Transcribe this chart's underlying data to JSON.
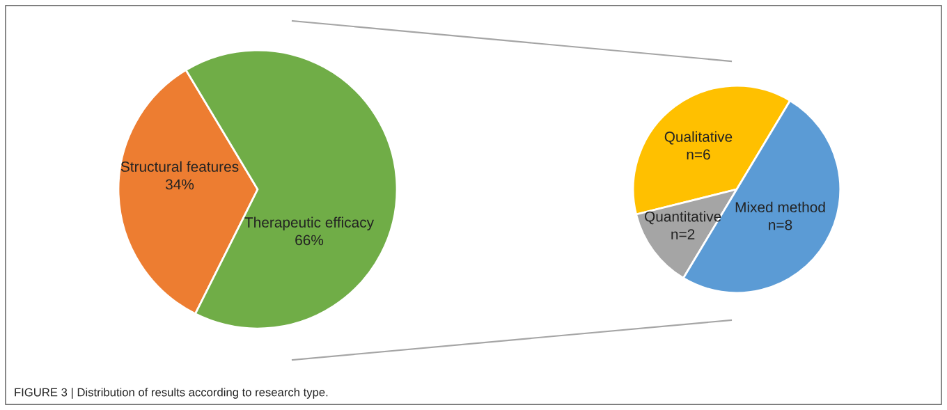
{
  "chart_data": [
    {
      "type": "pie",
      "categories": [
        "Structural features",
        "Therapeutic efficacy"
      ],
      "values": [
        34,
        66
      ],
      "colors": [
        "#ed7d31",
        "#70ad47"
      ],
      "value_labels": [
        "34%",
        "66%"
      ],
      "annotations": [
        "FIGURE 3 | Distribution of results according to research type."
      ]
    },
    {
      "type": "pie",
      "categories": [
        "Qualitative",
        "Quantitative",
        "Mixed method"
      ],
      "values": [
        6,
        2,
        8
      ],
      "colors": [
        "#ffc000",
        "#a5a5a5",
        "#5b9bd5"
      ],
      "value_labels": [
        "n=6",
        "n=2",
        "n=8"
      ]
    }
  ]
}
